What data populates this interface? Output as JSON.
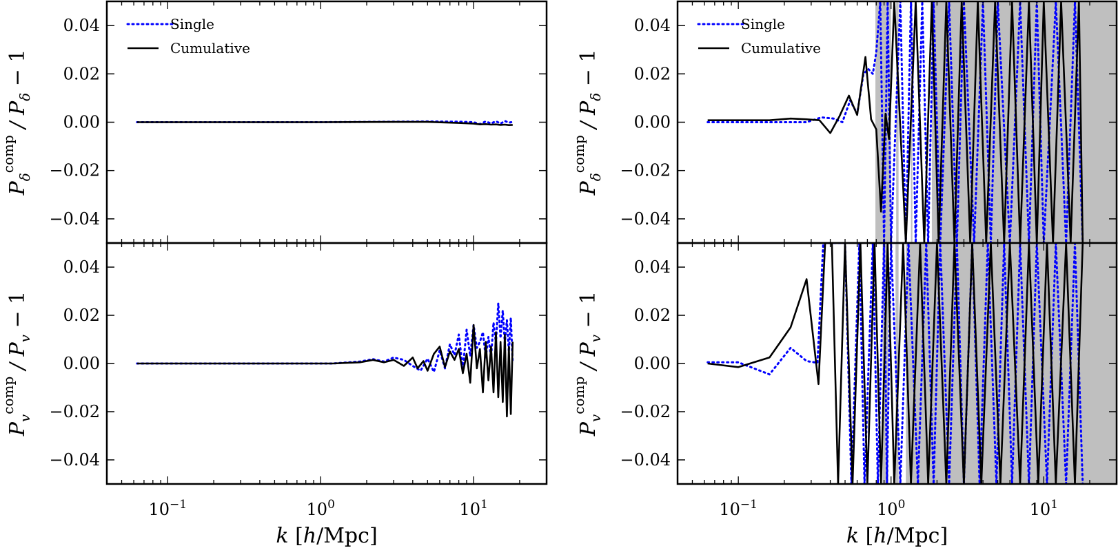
{
  "legend": {
    "single": "Single",
    "cumulative": "Cumulative"
  },
  "colors": {
    "single": "#0000ff",
    "cumulative": "#000000",
    "shade": "#bfbfbf"
  },
  "labels": {
    "xlabel": "k [h/Mpc]",
    "ylabel_delta": "P_δ^comp / P_δ − 1",
    "ylabel_v": "P_v^comp / P_v − 1"
  },
  "chart_data": [
    {
      "type": "line",
      "id": "top-left",
      "xscale": "log",
      "xlim": [
        0.04,
        30
      ],
      "ylim": [
        -0.05,
        0.05
      ],
      "xticks": [
        {
          "v": 0.1,
          "label": "10^-1"
        },
        {
          "v": 1,
          "label": "10^0"
        },
        {
          "v": 10,
          "label": "10^1"
        }
      ],
      "yticks": [
        {
          "v": 0.04,
          "label": "0.04"
        },
        {
          "v": 0.02,
          "label": "0.02"
        },
        {
          "v": 0,
          "label": "0.00"
        },
        {
          "v": -0.02,
          "label": "−0.02"
        },
        {
          "v": -0.04,
          "label": "−0.04"
        }
      ],
      "ylabel": "P_δ^comp / P_δ − 1",
      "legend": "top-left",
      "shaded": [],
      "series": [
        {
          "name": "Single",
          "style": "dotted",
          "x": [
            0.063,
            0.1,
            0.3,
            1,
            3,
            5,
            8,
            10,
            11,
            12,
            13,
            14,
            15,
            16,
            17,
            18
          ],
          "y": [
            0,
            0,
            0,
            0,
            0.0002,
            0.0003,
            0.0002,
            0,
            -0.0008,
            0.0003,
            -0.0005,
            0.0004,
            -0.0006,
            0.0005,
            -0.0002,
            0.0001
          ]
        },
        {
          "name": "Cumulative",
          "style": "solid",
          "x": [
            0.063,
            0.1,
            0.3,
            1,
            3,
            5,
            8,
            10,
            11,
            12,
            13,
            14,
            15,
            16,
            17,
            18
          ],
          "y": [
            0,
            0,
            0,
            0,
            0.0001,
            0.0001,
            -0.0003,
            -0.0006,
            -0.0009,
            -0.0008,
            -0.001,
            -0.0009,
            -0.0011,
            -0.001,
            -0.0012,
            -0.0011
          ]
        }
      ]
    },
    {
      "type": "line",
      "id": "top-right",
      "xscale": "log",
      "xlim": [
        0.04,
        30
      ],
      "ylim": [
        -0.05,
        0.05
      ],
      "xticks": [
        {
          "v": 0.1,
          "label": "10^-1"
        },
        {
          "v": 1,
          "label": "10^0"
        },
        {
          "v": 10,
          "label": "10^1"
        }
      ],
      "yticks": [
        {
          "v": 0.04,
          "label": "0.04"
        },
        {
          "v": 0.02,
          "label": "0.02"
        },
        {
          "v": 0,
          "label": "0.00"
        },
        {
          "v": -0.02,
          "label": "−0.02"
        },
        {
          "v": -0.04,
          "label": "−0.04"
        }
      ],
      "ylabel": "P_δ^comp / P_δ − 1",
      "legend": "top-left",
      "shaded": [
        [
          0.79,
          1.0
        ],
        [
          1.08,
          1.12
        ],
        [
          1.35,
          1.38
        ],
        [
          1.85,
          30
        ]
      ],
      "series": [
        {
          "name": "Single",
          "style": "dotted",
          "x": [
            0.063,
            0.1,
            0.16,
            0.22,
            0.28,
            0.35,
            0.42,
            0.48,
            0.54,
            0.6,
            0.66,
            0.71,
            0.76,
            0.8,
            0.85,
            0.9,
            0.95,
            1.0,
            1.15,
            1.25,
            1.35,
            1.45,
            1.6,
            1.75,
            1.9,
            2.1,
            2.4,
            2.7,
            3.0,
            3.5,
            4.0,
            4.5,
            5.0,
            6.0,
            7.0,
            8.0,
            9.0,
            10.0,
            12.0,
            14.0,
            16.0,
            18.0
          ],
          "y": [
            0,
            0,
            0,
            0,
            0,
            0.002,
            0.0015,
            0,
            0.009,
            0.0035,
            0.02,
            0.022,
            0.02,
            0.029,
            0.05,
            -0.05,
            0.05,
            -0.05,
            0.05,
            -0.05,
            0.05,
            -0.05,
            0.05,
            -0.05,
            0.05,
            -0.05,
            0.05,
            -0.05,
            0.05,
            -0.05,
            0.05,
            -0.05,
            0.05,
            -0.05,
            0.05,
            -0.05,
            0.05,
            -0.05,
            0.05,
            -0.05,
            0.05,
            -0.05
          ]
        },
        {
          "name": "Cumulative",
          "style": "solid",
          "x": [
            0.063,
            0.1,
            0.16,
            0.22,
            0.28,
            0.34,
            0.4,
            0.46,
            0.53,
            0.6,
            0.68,
            0.74,
            0.8,
            0.86,
            0.92,
            0.97,
            1.05,
            1.25,
            1.45,
            1.65,
            1.85,
            2.05,
            2.3,
            2.6,
            2.9,
            3.3,
            3.7,
            4.2,
            4.8,
            5.5,
            6.2,
            7.0,
            8.0,
            9.0,
            10.0,
            11.5,
            13.0,
            15.0,
            17.0,
            18.0
          ],
          "y": [
            0.0008,
            0.0008,
            0.0008,
            0.0015,
            0.0012,
            0.0008,
            -0.0045,
            0.0025,
            0.011,
            0.003,
            0.027,
            0.0012,
            -0.003,
            -0.037,
            0.0035,
            -0.007,
            0.05,
            -0.05,
            0.05,
            -0.05,
            0.05,
            -0.05,
            0.05,
            -0.05,
            0.05,
            -0.05,
            0.05,
            -0.05,
            0.05,
            -0.05,
            0.05,
            -0.05,
            0.05,
            -0.05,
            0.05,
            -0.05,
            0.05,
            -0.05,
            0.05,
            -0.05
          ]
        }
      ]
    },
    {
      "type": "line",
      "id": "bottom-left",
      "xscale": "log",
      "xlim": [
        0.04,
        30
      ],
      "ylim": [
        -0.05,
        0.05
      ],
      "xticks": [
        {
          "v": 0.1,
          "label": "10^-1"
        },
        {
          "v": 1,
          "label": "10^0"
        },
        {
          "v": 10,
          "label": "10^1"
        }
      ],
      "yticks": [
        {
          "v": 0.04,
          "label": "0.04"
        },
        {
          "v": 0.02,
          "label": "0.02"
        },
        {
          "v": 0,
          "label": "0.00"
        },
        {
          "v": -0.02,
          "label": "−0.02"
        },
        {
          "v": -0.04,
          "label": "−0.04"
        }
      ],
      "xlabel": "k [h/Mpc]",
      "ylabel": "P_v^comp / P_v − 1",
      "shaded": [],
      "series": [
        {
          "name": "Single",
          "style": "dotted",
          "x": [
            0.063,
            0.2,
            0.6,
            1.2,
            1.8,
            2.2,
            2.6,
            3.0,
            3.5,
            4.0,
            4.5,
            5.0,
            5.5,
            6.0,
            6.5,
            7.0,
            7.5,
            8.0,
            8.5,
            9.0,
            9.5,
            10.0,
            10.5,
            11.0,
            11.5,
            12.0,
            12.5,
            13.0,
            13.5,
            14.0,
            14.5,
            15.0,
            15.5,
            16.0,
            16.5,
            17.0,
            17.5,
            18.0
          ],
          "y": [
            0,
            0,
            0,
            0,
            0.0008,
            0.0018,
            0.0008,
            0.0025,
            0.0015,
            -0.001,
            -0.003,
            0.002,
            -0.0035,
            0.0055,
            -0.002,
            0.008,
            0.0035,
            0.012,
            -0.002,
            0.014,
            0.003,
            0.016,
            0.0065,
            0.009,
            0.013,
            0.0025,
            0.011,
            0.0025,
            0.017,
            0.0085,
            0.025,
            0.0105,
            0.022,
            0.0085,
            0.018,
            0.005,
            0.019,
            0.0
          ]
        },
        {
          "name": "Cumulative",
          "style": "solid",
          "x": [
            0.063,
            0.2,
            0.6,
            1.2,
            1.8,
            2.2,
            2.6,
            3.0,
            3.5,
            4.0,
            4.3,
            4.7,
            5.0,
            5.5,
            6.0,
            6.5,
            7.0,
            7.5,
            8.0,
            8.5,
            9.0,
            9.5,
            10.0,
            10.5,
            11.0,
            11.5,
            12.0,
            12.5,
            13.0,
            13.5,
            14.0,
            14.5,
            15.0,
            15.5,
            16.0,
            16.5,
            17.0,
            17.5,
            18.0
          ],
          "y": [
            0,
            0,
            0,
            0,
            0.0005,
            0.0015,
            0.0005,
            0.0015,
            -0.001,
            0.0025,
            -0.002,
            0.001,
            -0.003,
            0.004,
            0.007,
            -0.0015,
            0.005,
            0.0015,
            0.006,
            -0.004,
            0.004,
            -0.008,
            0.016,
            -0.002,
            0.006,
            -0.012,
            0.009,
            -0.007,
            0.007,
            -0.012,
            0.013,
            -0.014,
            0.009,
            -0.016,
            0.012,
            -0.022,
            0.007,
            -0.021,
            0.009
          ]
        }
      ]
    },
    {
      "type": "line",
      "id": "bottom-right",
      "xscale": "log",
      "xlim": [
        0.04,
        30
      ],
      "ylim": [
        -0.05,
        0.05
      ],
      "xticks": [
        {
          "v": 0.1,
          "label": "10^-1"
        },
        {
          "v": 1,
          "label": "10^0"
        },
        {
          "v": 10,
          "label": "10^1"
        }
      ],
      "yticks": [
        {
          "v": 0.04,
          "label": "0.04"
        },
        {
          "v": 0.02,
          "label": "0.02"
        },
        {
          "v": 0,
          "label": "0.00"
        },
        {
          "v": -0.02,
          "label": "−0.02"
        },
        {
          "v": -0.04,
          "label": "−0.04"
        }
      ],
      "xlabel": "k [h/Mpc]",
      "ylabel": "P_v^comp / P_v − 1",
      "shaded": [
        [
          0.88,
          0.96
        ],
        [
          1.07,
          1.12
        ],
        [
          1.25,
          30
        ]
      ],
      "series": [
        {
          "name": "Single",
          "style": "dotted",
          "x": [
            0.063,
            0.1,
            0.16,
            0.22,
            0.28,
            0.33,
            0.36,
            0.4,
            0.5,
            0.55,
            0.62,
            0.67,
            0.76,
            0.82,
            0.9,
            0.94,
            1.0,
            1.15,
            1.3,
            1.5,
            1.7,
            1.9,
            2.1,
            2.4,
            2.7,
            3.0,
            3.4,
            3.8,
            4.3,
            4.9,
            5.5,
            6.2,
            7.0,
            8.0,
            9.0,
            10.5,
            12.0,
            14.0,
            16.0,
            18.0
          ],
          "y": [
            0.0005,
            0.0005,
            -0.0045,
            0.0065,
            0.001,
            0.0003,
            0.05,
            0.05,
            0.05,
            -0.05,
            0.05,
            -0.05,
            0.05,
            -0.05,
            0.05,
            -0.05,
            0.05,
            -0.05,
            0.05,
            -0.05,
            0.05,
            -0.05,
            0.05,
            -0.05,
            0.05,
            -0.05,
            0.05,
            -0.05,
            0.05,
            -0.05,
            0.05,
            -0.05,
            0.05,
            -0.05,
            0.05,
            -0.05,
            0.05,
            -0.05,
            0.05,
            -0.05
          ]
        },
        {
          "name": "Cumulative",
          "style": "solid",
          "x": [
            0.063,
            0.1,
            0.16,
            0.22,
            0.28,
            0.335,
            0.37,
            0.41,
            0.45,
            0.5,
            0.56,
            0.63,
            0.7,
            0.78,
            0.86,
            0.95,
            1.05,
            1.2,
            1.35,
            1.55,
            1.75,
            2.0,
            2.3,
            2.6,
            3.0,
            3.4,
            3.9,
            4.5,
            5.2,
            6.0,
            7.0,
            8.0,
            9.2,
            10.5,
            12.0,
            14.0,
            16.0,
            18.0
          ],
          "y": [
            0,
            -0.0015,
            0.0025,
            0.015,
            0.035,
            -0.0085,
            0.05,
            0.05,
            -0.05,
            0.05,
            -0.05,
            0.05,
            -0.05,
            0.05,
            -0.05,
            0.05,
            -0.05,
            0.05,
            -0.05,
            0.05,
            -0.05,
            0.05,
            -0.05,
            0.05,
            -0.05,
            0.05,
            -0.05,
            0.05,
            -0.05,
            0.05,
            -0.05,
            0.05,
            -0.05,
            0.05,
            -0.05,
            0.05,
            -0.05,
            0.05
          ]
        }
      ]
    }
  ]
}
